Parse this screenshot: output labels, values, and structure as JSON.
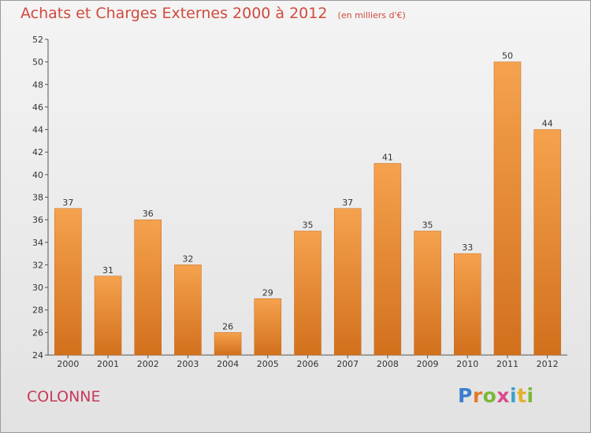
{
  "header": {
    "title": "Achats et Charges Externes 2000 à 2012",
    "subtitle": "(en milliers d'€)"
  },
  "footer": {
    "commune": "COLONNE",
    "logo_text": "Proxiti"
  },
  "colors": {
    "bar_light": "#f5a24e",
    "bar_dark": "#d2701c",
    "title": "#d04a3e",
    "commune": "#c83a5a"
  },
  "chart_data": {
    "type": "bar",
    "title": "Achats et Charges Externes 2000 à 2012",
    "subtitle": "(en milliers d'€)",
    "xlabel": "",
    "ylabel": "",
    "categories": [
      "2000",
      "2001",
      "2002",
      "2003",
      "2004",
      "2005",
      "2006",
      "2007",
      "2008",
      "2009",
      "2010",
      "2011",
      "2012"
    ],
    "values": [
      37,
      31,
      36,
      32,
      26,
      29,
      35,
      37,
      41,
      35,
      33,
      50,
      44
    ],
    "ylim": [
      24,
      52
    ],
    "yticks": [
      24,
      26,
      28,
      30,
      32,
      34,
      36,
      38,
      40,
      42,
      44,
      46,
      48,
      50,
      52
    ],
    "grid": false,
    "legend": "none",
    "data_labels": true
  }
}
